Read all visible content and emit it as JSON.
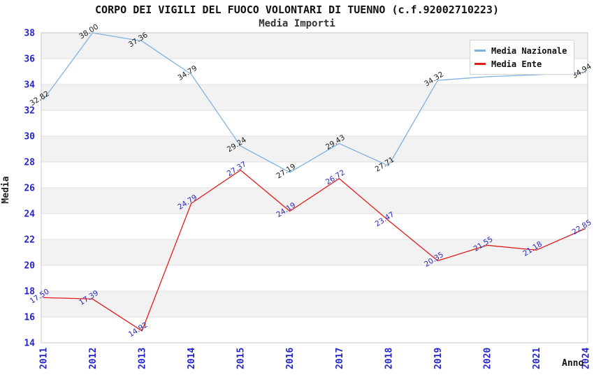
{
  "title": "CORPO DEI VIGILI DEL FUOCO VOLONTARI DI TUENNO (c.f.92002710223)",
  "subtitle": "Media Importi",
  "chart_data": {
    "type": "line",
    "x": [
      "2011",
      "2012",
      "2013",
      "2014",
      "2015",
      "2016",
      "2017",
      "2018",
      "2019",
      "2020",
      "2021",
      "2024"
    ],
    "xlabel": "Anno",
    "ylabel": "Media",
    "ylim": [
      14,
      38
    ],
    "ytick_step": 2,
    "grid": "horizontal-alternating-bands",
    "legend_position": "top-right",
    "series": [
      {
        "name": "Media Nazionale",
        "color": "#7fb1e3",
        "label_color": "#1a1a1a",
        "values": [
          32.82,
          38.0,
          37.36,
          34.79,
          29.24,
          27.19,
          29.43,
          27.71,
          34.32,
          34.6,
          34.75,
          34.94
        ],
        "hidden_label_indexes": [
          9,
          10
        ],
        "hidden_label_reason": "covered by legend box"
      },
      {
        "name": "Media Ente",
        "color": "#e11c1c",
        "label_color": "#2828bb",
        "values": [
          17.5,
          17.39,
          14.92,
          24.79,
          27.37,
          24.19,
          26.72,
          23.47,
          20.35,
          21.55,
          21.18,
          22.85
        ],
        "hidden_label_indexes": []
      }
    ]
  },
  "colors": {
    "tick_label": "#2424cc",
    "band_gray": "#f2f2f2",
    "gridline": "#e0e0e0",
    "plot_border": "#c8c8c8",
    "background": "#ffffff"
  }
}
